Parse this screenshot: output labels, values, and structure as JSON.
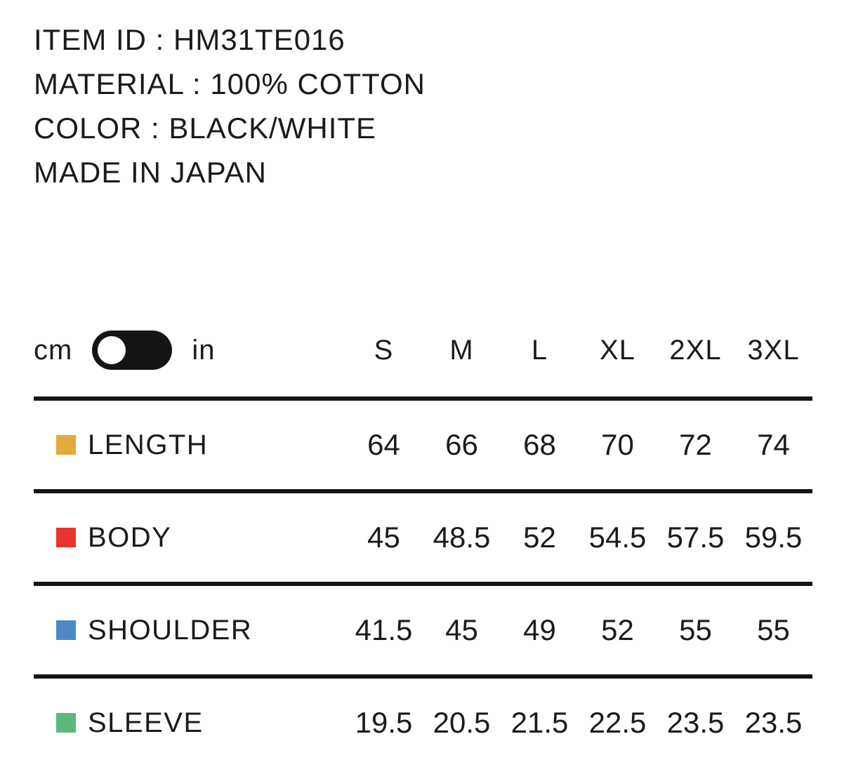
{
  "product_info": {
    "item_id": "ITEM ID : HM31TE016",
    "material": "MATERIAL : 100% COTTON",
    "color": "COLOR : BLACK/WHITE",
    "origin": "MADE IN JAPAN"
  },
  "unit_toggle": {
    "left_label": "cm",
    "right_label": "in",
    "selected_unit": "cm",
    "track_color": "#141414",
    "knob_color": "#ffffff"
  },
  "size_chart": {
    "sizes": [
      "S",
      "M",
      "L",
      "XL",
      "2XL",
      "3XL"
    ],
    "rows": [
      {
        "label": "LENGTH",
        "swatch_color": "#E2A93B",
        "values": [
          "64",
          "66",
          "68",
          "70",
          "72",
          "74"
        ]
      },
      {
        "label": "BODY",
        "swatch_color": "#E8342B",
        "values": [
          "45",
          "48.5",
          "52",
          "54.5",
          "57.5",
          "59.5"
        ]
      },
      {
        "label": "SHOULDER",
        "swatch_color": "#4A8AC9",
        "values": [
          "41.5",
          "45",
          "49",
          "52",
          "55",
          "55"
        ]
      },
      {
        "label": "SLEEVE",
        "swatch_color": "#5CB97E",
        "values": [
          "19.5",
          "20.5",
          "21.5",
          "22.5",
          "23.5",
          "23.5"
        ]
      }
    ]
  }
}
